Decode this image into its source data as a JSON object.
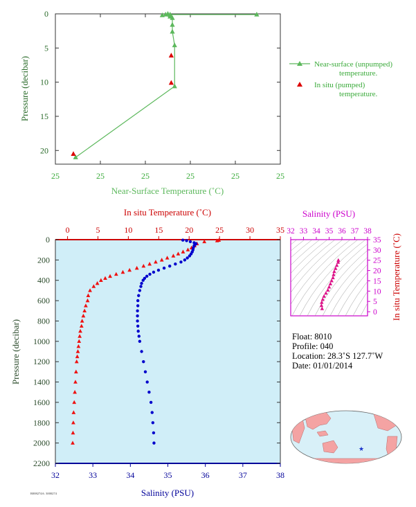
{
  "chart_data": [
    {
      "id": "near-surface",
      "type": "line",
      "title": "",
      "xlabel": "Near-Surface Temperature (˚C)",
      "ylabel": "Pressure (decibar)",
      "x_tick_labels": [
        "25",
        "25",
        "25",
        "25",
        "25",
        "25"
      ],
      "y_ticks": [
        0,
        5,
        10,
        15,
        20
      ],
      "xlim": [
        0,
        10
      ],
      "ylim": [
        0,
        22
      ],
      "y_inverted": true,
      "colors": {
        "line": "#5cb85c",
        "insitu": "#dd0000",
        "axis_text": "#2a6b2a"
      },
      "series": [
        {
          "name": "Near-surface (unpumped) temperature.",
          "marker": "triangle",
          "points": [
            {
              "x": 8.95,
              "y": 0.1
            },
            {
              "x": 5.1,
              "y": 0.1
            },
            {
              "x": 5.0,
              "y": 0.0
            },
            {
              "x": 5.1,
              "y": 0.2
            },
            {
              "x": 5.2,
              "y": 0.6
            },
            {
              "x": 5.2,
              "y": 1.6
            },
            {
              "x": 5.2,
              "y": 2.6
            },
            {
              "x": 5.3,
              "y": 4.6
            },
            {
              "x": 5.3,
              "y": 10.6
            },
            {
              "x": 0.9,
              "y": 21.0
            }
          ],
          "extra_marks": [
            {
              "x": 4.75,
              "y": 0.2
            },
            {
              "x": 4.9,
              "y": 0.1
            },
            {
              "x": 5.1,
              "y": 0.4
            }
          ]
        },
        {
          "name": "In situ (pumped) temperature.",
          "marker": "triangle",
          "points": [
            {
              "x": 0.8,
              "y": 20.5
            },
            {
              "x": 5.15,
              "y": 6.1
            },
            {
              "x": 5.15,
              "y": 10.1
            }
          ]
        }
      ]
    },
    {
      "id": "profile",
      "type": "scatter",
      "title": "",
      "ylabel": "Pressure (decibar)",
      "top_xlabel": "In situ Temperature (˚C)",
      "bottom_xlabel": "Salinity (PSU)",
      "temp_ticks": [
        0,
        5,
        10,
        15,
        20,
        25,
        30,
        35
      ],
      "temp_xlim": [
        -2,
        35
      ],
      "sal_ticks": [
        32,
        33,
        34,
        35,
        36,
        37,
        38
      ],
      "sal_xlim": [
        32,
        38
      ],
      "y_ticks": [
        0,
        200,
        400,
        600,
        800,
        1000,
        1200,
        1400,
        1600,
        1800,
        2000,
        2200
      ],
      "ylim": [
        0,
        2200
      ],
      "y_inverted": true,
      "colors": {
        "temperature": "#ee1111",
        "salinity": "#0000cc",
        "background": "#d0eef8",
        "axis_text": "#2a4a2a",
        "temp_axis": "#cc0000",
        "sal_axis": "#000099"
      },
      "temperature": {
        "name": "In situ Temperature",
        "marker": "triangle",
        "pressure": [
          5,
          10,
          20,
          40,
          60,
          80,
          100,
          120,
          140,
          160,
          180,
          200,
          220,
          240,
          260,
          280,
          300,
          320,
          340,
          360,
          380,
          400,
          430,
          460,
          500,
          550,
          600,
          650,
          700,
          750,
          800,
          850,
          900,
          950,
          1000,
          1050,
          1100,
          1150,
          1200,
          1300,
          1400,
          1500,
          1600,
          1700,
          1800,
          1900,
          2000
        ],
        "values": [
          24.9,
          24.6,
          22.5,
          21.3,
          20.9,
          20.4,
          19.8,
          19.0,
          18.2,
          17.4,
          16.4,
          15.5,
          14.5,
          13.5,
          12.5,
          11.4,
          10.2,
          9.1,
          8.0,
          7.0,
          6.2,
          5.5,
          4.9,
          4.3,
          3.7,
          3.4,
          3.3,
          3.0,
          2.8,
          2.6,
          2.4,
          2.3,
          2.1,
          2.0,
          1.9,
          1.8,
          1.7,
          1.6,
          1.5,
          1.4,
          1.3,
          1.2,
          1.1,
          1.0,
          0.95,
          0.9,
          0.85
        ]
      },
      "salinity": {
        "name": "Salinity",
        "marker": "circle",
        "pressure": [
          5,
          10,
          20,
          30,
          40,
          50,
          60,
          80,
          100,
          120,
          140,
          160,
          180,
          200,
          220,
          240,
          260,
          280,
          300,
          320,
          340,
          360,
          380,
          400,
          430,
          460,
          500,
          550,
          600,
          650,
          700,
          750,
          800,
          850,
          900,
          950,
          1000,
          1100,
          1200,
          1300,
          1400,
          1500,
          1600,
          1700,
          1800,
          1900,
          2000
        ],
        "values": [
          35.4,
          35.5,
          35.6,
          35.7,
          35.75,
          35.72,
          35.7,
          35.68,
          35.67,
          35.65,
          35.62,
          35.58,
          35.52,
          35.45,
          35.35,
          35.2,
          35.05,
          34.9,
          34.75,
          34.62,
          34.52,
          34.44,
          34.38,
          34.34,
          34.3,
          34.28,
          34.25,
          34.22,
          34.2,
          34.2,
          34.19,
          34.19,
          34.19,
          34.2,
          34.21,
          34.23,
          34.25,
          34.3,
          34.35,
          34.4,
          34.45,
          34.5,
          34.55,
          34.58,
          34.6,
          34.62,
          34.63
        ]
      }
    },
    {
      "id": "ts-diagram",
      "type": "scatter",
      "title": "",
      "top_xlabel": "Salinity (PSU)",
      "right_ylabel": "In situ Temperature (˚C)",
      "sal_ticks": [
        32,
        33,
        34,
        35,
        36,
        37,
        38
      ],
      "sal_xlim": [
        32,
        38
      ],
      "temp_ticks": [
        0,
        5,
        10,
        15,
        20,
        25,
        30,
        35
      ],
      "temp_ylim": [
        -2,
        35
      ],
      "colors": {
        "points": "#dd1188",
        "axis": "#cc00cc",
        "contour": "#999999"
      },
      "points": [
        {
          "s": 34.45,
          "t": 1.5
        },
        {
          "s": 34.4,
          "t": 3.0
        },
        {
          "s": 34.42,
          "t": 4.5
        },
        {
          "s": 34.5,
          "t": 6.0
        },
        {
          "s": 34.6,
          "t": 7.5
        },
        {
          "s": 34.75,
          "t": 9.0
        },
        {
          "s": 34.9,
          "t": 10.5
        },
        {
          "s": 35.0,
          "t": 12.0
        },
        {
          "s": 35.1,
          "t": 13.5
        },
        {
          "s": 35.2,
          "t": 15.0
        },
        {
          "s": 35.3,
          "t": 16.5
        },
        {
          "s": 35.35,
          "t": 18.0
        },
        {
          "s": 35.4,
          "t": 19.5
        },
        {
          "s": 35.5,
          "t": 21.0
        },
        {
          "s": 35.6,
          "t": 22.5
        },
        {
          "s": 35.7,
          "t": 24.0
        },
        {
          "s": 35.72,
          "t": 25.0
        }
      ]
    }
  ],
  "info": {
    "float": "Float:  8010",
    "profile": "Profile:  040",
    "location": "Location:  28.3˚S  127.7˚W",
    "date": "Date:  01/01/2014"
  },
  "footer_tag": "R008274A: 3000274",
  "map": {
    "marker_location": "28.3˚S 127.7˚W",
    "colors": {
      "ocean": "#d8f0f8",
      "land": "#f4a3a3",
      "marker": "#1a33cc"
    }
  }
}
